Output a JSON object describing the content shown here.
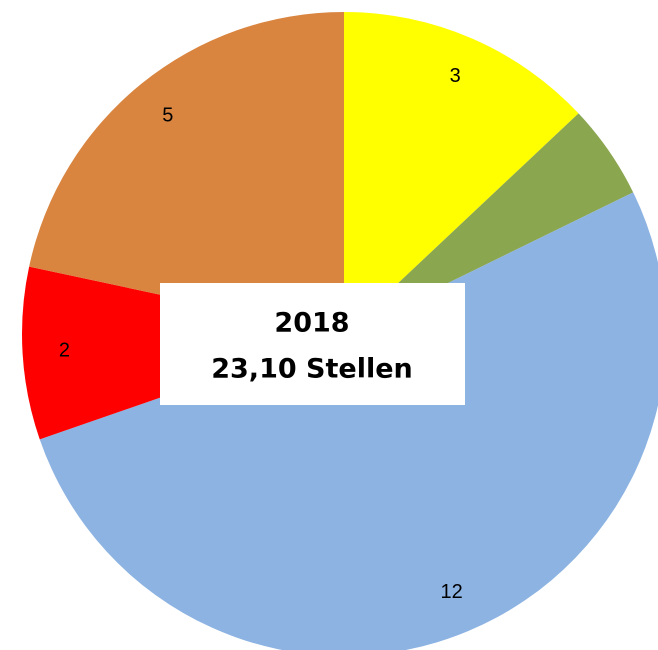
{
  "chart_data": {
    "type": "pie",
    "title": "2018",
    "subtitle": "23,10 Stellen",
    "values": [
      3,
      1.1,
      12,
      2,
      5
    ],
    "value_labels": [
      "3",
      null,
      "12",
      "2",
      "5"
    ],
    "colors": [
      "#ffff00",
      "#8aa64f",
      "#8db3e2",
      "#ff0000",
      "#d98540"
    ]
  }
}
